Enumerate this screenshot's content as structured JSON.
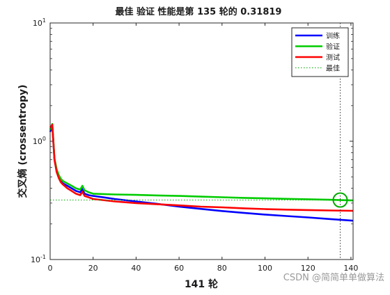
{
  "chart_data": {
    "type": "line",
    "title": "最佳 验证 性能是第 135 轮的 0.31819",
    "xlabel": "141 轮",
    "ylabel": "交叉熵 (crossentropy)",
    "xlim": [
      0,
      141
    ],
    "ylim": [
      0.1,
      10
    ],
    "yscale": "log",
    "grid": false,
    "legend_position": "top-right",
    "x_ticks": [
      "0",
      "20",
      "40",
      "60",
      "80",
      "100",
      "120",
      "140"
    ],
    "x_tick_values": [
      0,
      20,
      40,
      60,
      80,
      100,
      120,
      140
    ],
    "y_tick_values": [
      0.1,
      1,
      10
    ],
    "y_tick_labels": [
      {
        "base": "10",
        "exp": "-1"
      },
      {
        "base": "10",
        "exp": "0"
      },
      {
        "base": "10",
        "exp": "1"
      }
    ],
    "series": [
      {
        "name": "训练",
        "color": "#0000ff",
        "x": [
          0,
          1,
          2,
          3,
          4,
          5,
          6,
          8,
          10,
          12,
          14,
          15,
          16,
          18,
          20,
          25,
          30,
          40,
          50,
          60,
          70,
          80,
          90,
          100,
          110,
          120,
          130,
          141
        ],
        "y": [
          1.2,
          1.35,
          0.7,
          0.56,
          0.5,
          0.46,
          0.44,
          0.42,
          0.4,
          0.38,
          0.37,
          0.395,
          0.36,
          0.35,
          0.345,
          0.335,
          0.325,
          0.31,
          0.295,
          0.28,
          0.268,
          0.257,
          0.248,
          0.24,
          0.233,
          0.227,
          0.22,
          0.213
        ]
      },
      {
        "name": "验证",
        "color": "#00cc00",
        "x": [
          0,
          1,
          2,
          3,
          4,
          5,
          6,
          8,
          10,
          12,
          14,
          15,
          16,
          18,
          20,
          30,
          40,
          50,
          60,
          70,
          80,
          90,
          100,
          110,
          120,
          130,
          135,
          141
        ],
        "y": [
          1.25,
          1.4,
          0.72,
          0.58,
          0.52,
          0.48,
          0.46,
          0.44,
          0.42,
          0.4,
          0.39,
          0.42,
          0.385,
          0.37,
          0.36,
          0.355,
          0.352,
          0.348,
          0.345,
          0.34,
          0.336,
          0.332,
          0.329,
          0.326,
          0.323,
          0.32,
          0.318,
          0.316
        ]
      },
      {
        "name": "测试",
        "color": "#ff0000",
        "x": [
          0,
          1,
          2,
          3,
          4,
          5,
          6,
          8,
          10,
          12,
          14,
          15,
          16,
          18,
          20,
          30,
          40,
          50,
          60,
          70,
          80,
          90,
          100,
          110,
          120,
          130,
          141
        ],
        "y": [
          1.3,
          1.38,
          0.7,
          0.55,
          0.49,
          0.45,
          0.43,
          0.4,
          0.38,
          0.36,
          0.35,
          0.375,
          0.345,
          0.335,
          0.325,
          0.31,
          0.3,
          0.293,
          0.287,
          0.28,
          0.276,
          0.271,
          0.267,
          0.264,
          0.262,
          0.26,
          0.258
        ]
      }
    ],
    "best": {
      "name": "最佳",
      "epoch": 135,
      "value": 0.31819,
      "color": "#00aa00"
    }
  }
}
